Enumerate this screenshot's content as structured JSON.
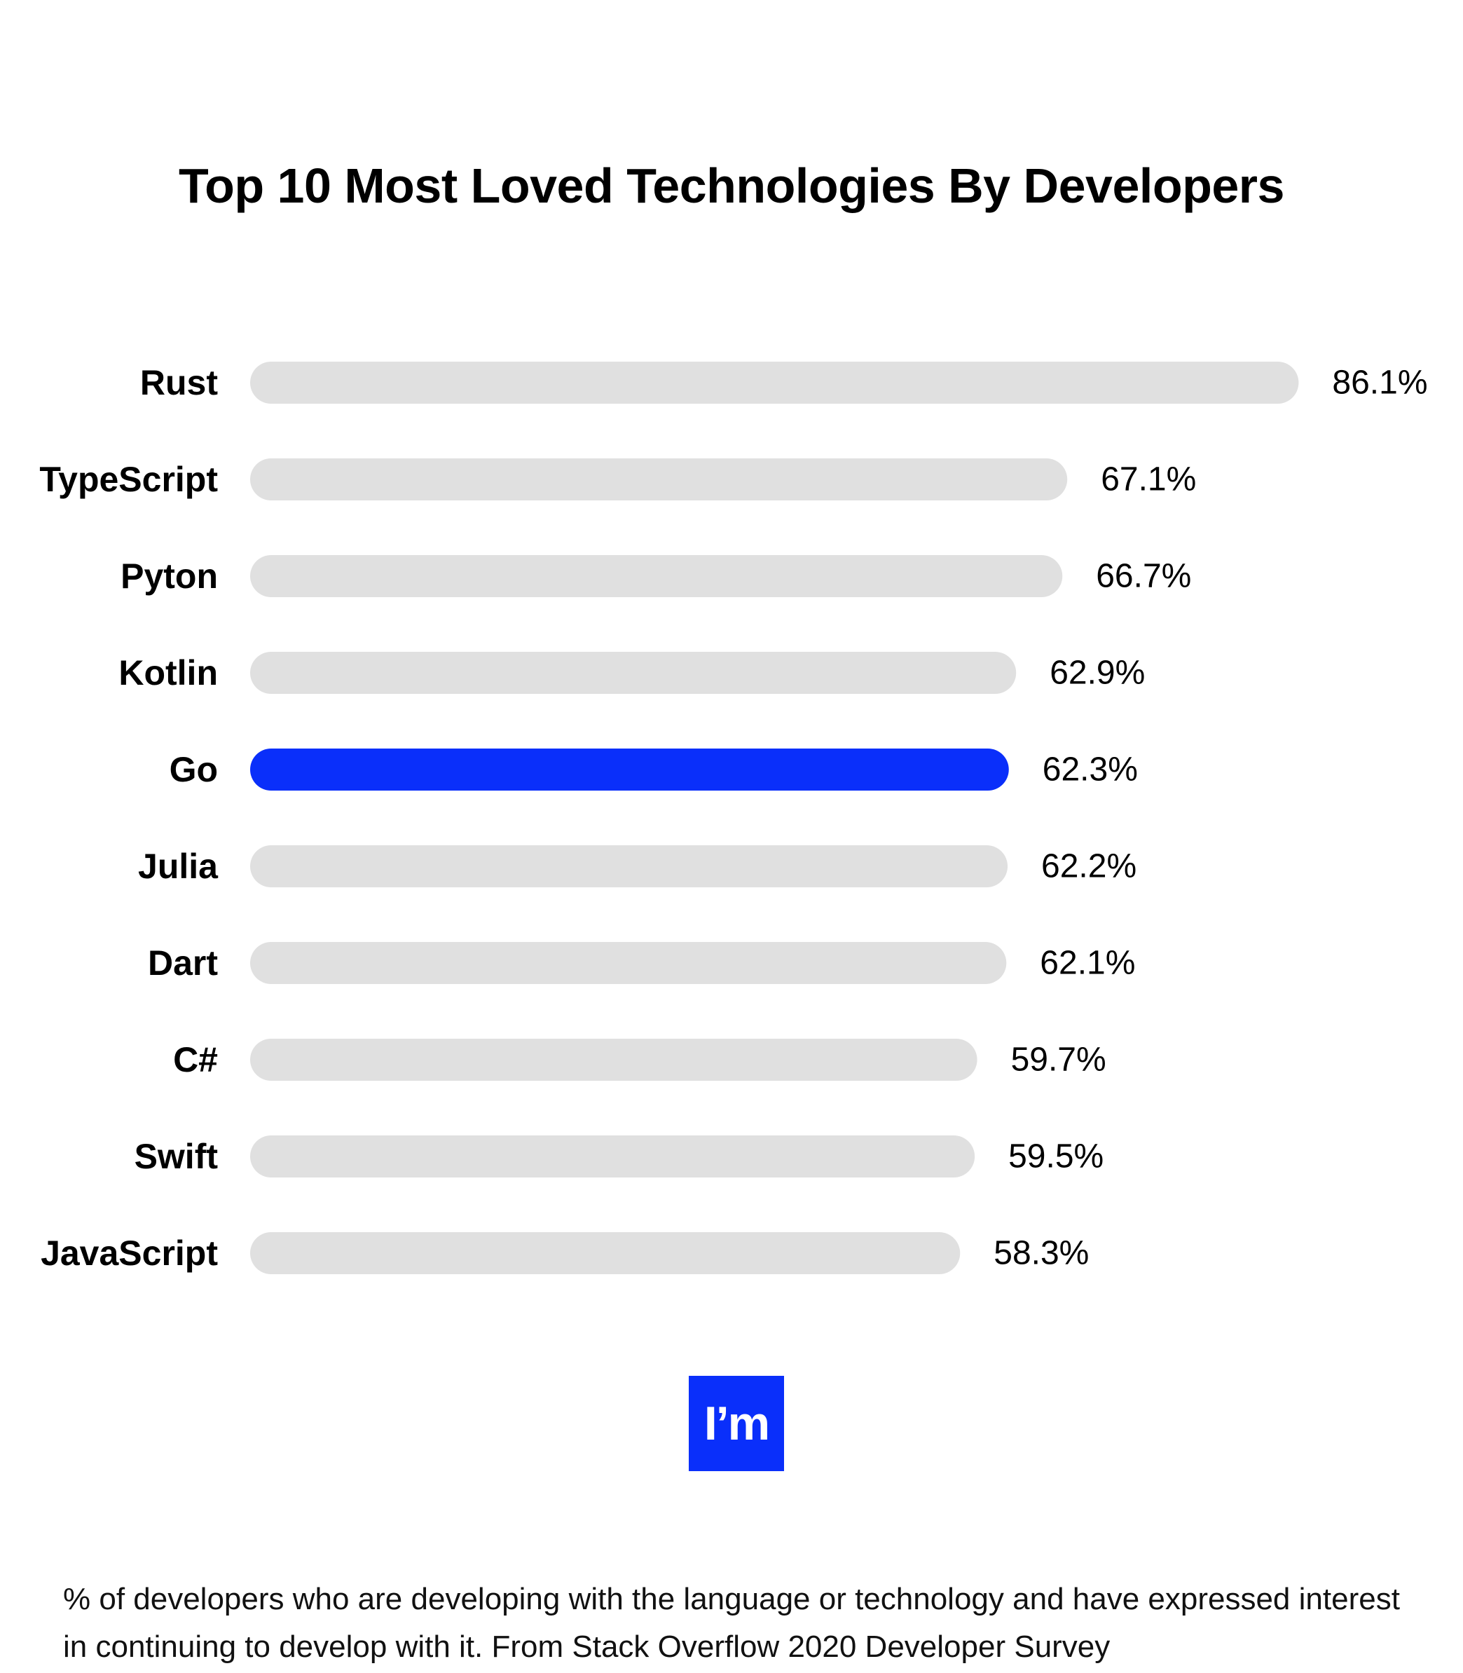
{
  "chart_data": {
    "type": "bar",
    "orientation": "horizontal",
    "title": "Top 10 Most Loved Technologies By Developers",
    "categories": [
      "Rust",
      "TypeScript",
      "Pyton",
      "Kotlin",
      "Go",
      "Julia",
      "Dart",
      "C#",
      "Swift",
      "JavaScript"
    ],
    "values": [
      86.1,
      67.1,
      66.7,
      62.9,
      62.3,
      62.2,
      62.1,
      59.7,
      59.5,
      58.3
    ],
    "value_labels": [
      "86.1%",
      "67.1%",
      "66.7%",
      "62.9%",
      "62.3%",
      "62.2%",
      "62.1%",
      "59.7%",
      "59.5%",
      "58.3%"
    ],
    "highlighted_category": "Go",
    "xlabel": "",
    "ylabel": "",
    "grid": false,
    "legend": "none",
    "colors": {
      "bar": "#e0e0e0",
      "highlight": "#0a2ffa"
    }
  },
  "logo": {
    "text": "I’m",
    "color": "#0a2ffa"
  },
  "footnote": "% of developers who are developing with the language or technology and have expressed interest in continuing to develop with it. From Stack Overflow 2020 Developer Survey"
}
